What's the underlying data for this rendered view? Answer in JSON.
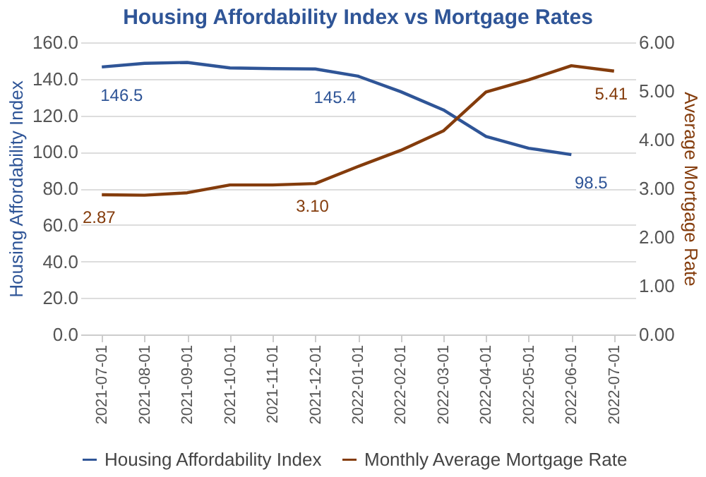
{
  "chart_data": {
    "type": "line",
    "title": "Housing Affordability Index vs Mortgage Rates",
    "categories": [
      "2021-07-01",
      "2021-08-01",
      "2021-09-01",
      "2021-10-01",
      "2021-11-01",
      "2021-12-01",
      "2022-01-01",
      "2022-02-01",
      "2022-03-01",
      "2022-04-01",
      "2022-05-01",
      "2022-06-01",
      "2022-07-01"
    ],
    "series": [
      {
        "name": "Housing Affordability Index",
        "color": "#2f5597",
        "values": [
          146.5,
          148.5,
          149.0,
          146.0,
          145.6,
          145.4,
          141.5,
          133.0,
          123.0,
          108.5,
          102.0,
          98.5,
          null
        ],
        "value_labels": [
          "146.5",
          null,
          null,
          null,
          null,
          "145.4",
          null,
          null,
          null,
          null,
          null,
          "98.5",
          null
        ]
      },
      {
        "name": "Monthly Average Mortgage Rate",
        "color": "#843c0c",
        "axis": "y2",
        "values": [
          2.87,
          2.86,
          2.91,
          3.07,
          3.07,
          3.1,
          3.45,
          3.78,
          4.18,
          4.98,
          5.23,
          5.52,
          5.41
        ],
        "value_labels": [
          "2.87",
          null,
          null,
          null,
          null,
          "3.10",
          null,
          null,
          null,
          null,
          null,
          null,
          "5.41"
        ]
      }
    ],
    "ylabel": "Housing Affordability Index",
    "y2label": "Average Mortgage Rate",
    "ylim": [
      0,
      160
    ],
    "yticks": [
      {
        "value": 0,
        "label": "0.0"
      },
      {
        "value": 20,
        "label": "20.0"
      },
      {
        "value": 40,
        "label": "40.0"
      },
      {
        "value": 60,
        "label": "60.0"
      },
      {
        "value": 80,
        "label": "80.0"
      },
      {
        "value": 100,
        "label": "100.0"
      },
      {
        "value": 120,
        "label": "120.0"
      },
      {
        "value": 140,
        "label": "140.0"
      },
      {
        "value": 160,
        "label": "160.0"
      }
    ],
    "y2lim": [
      0,
      6
    ],
    "y2ticks": [
      {
        "value": 0,
        "label": "0.00"
      },
      {
        "value": 1,
        "label": "1.00"
      },
      {
        "value": 2,
        "label": "2.00"
      },
      {
        "value": 3,
        "label": "3.00"
      },
      {
        "value": 4,
        "label": "4.00"
      },
      {
        "value": 5,
        "label": "5.00"
      },
      {
        "value": 6,
        "label": "6.00"
      }
    ],
    "grid": "y",
    "legend": "bottom",
    "marker": "none",
    "line_style": "solid"
  }
}
